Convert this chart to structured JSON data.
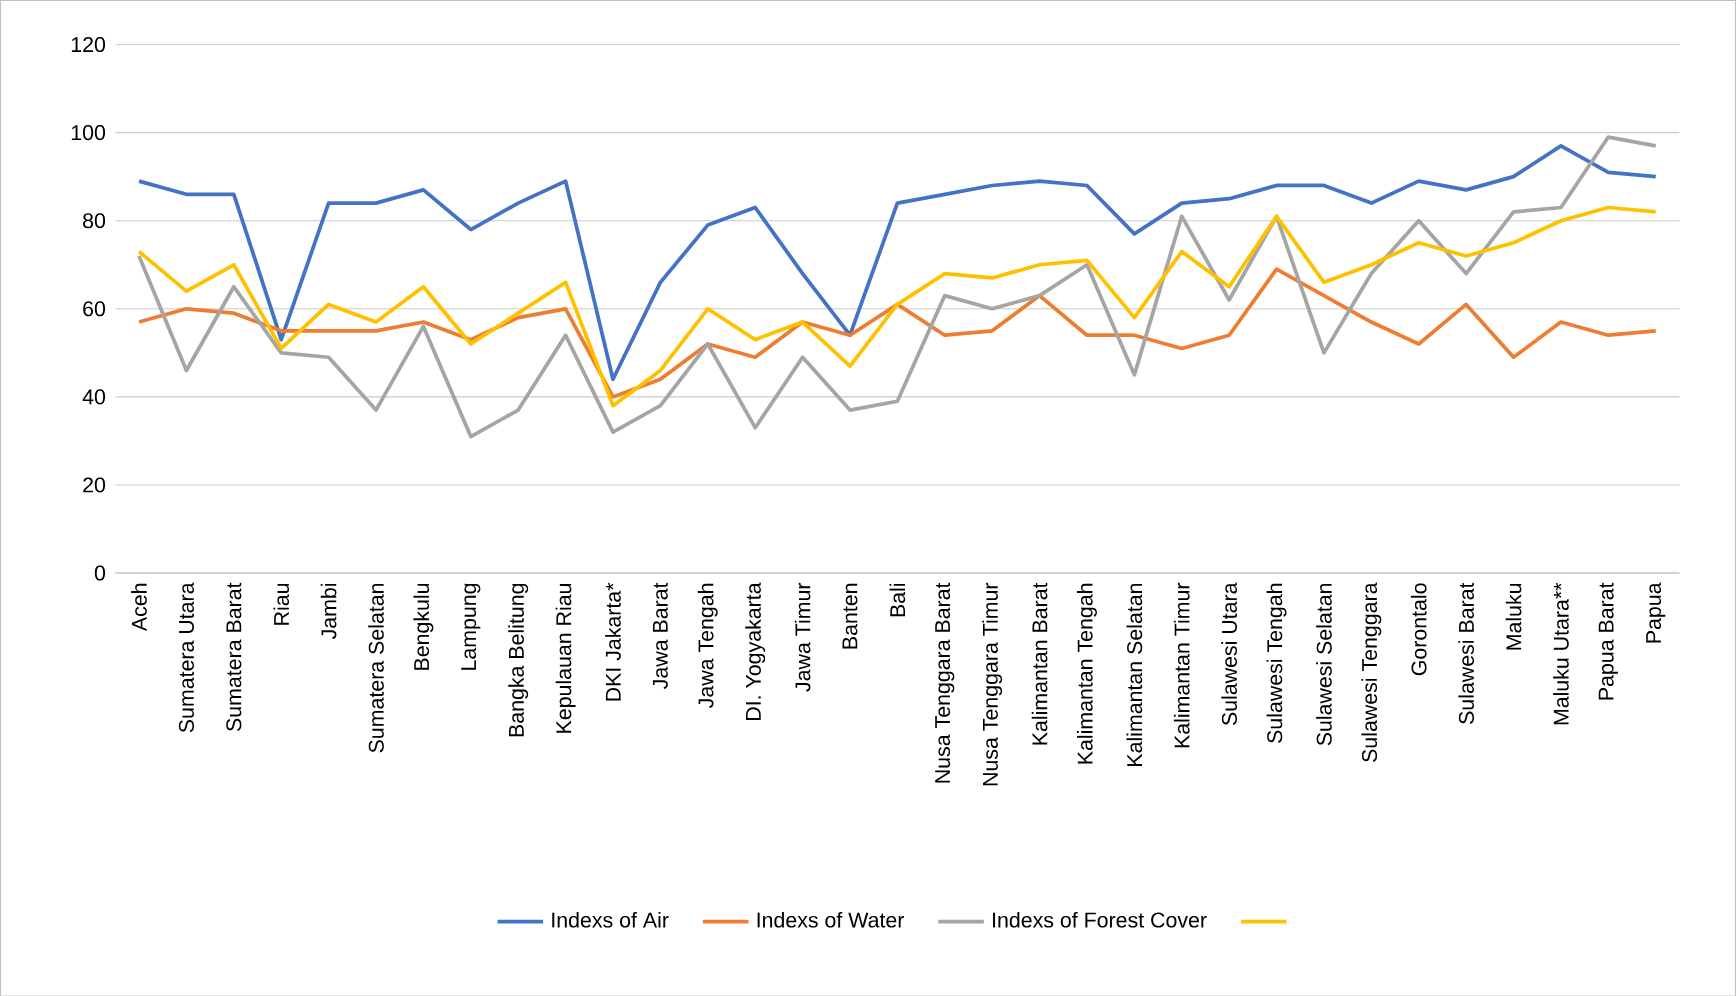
{
  "chart_data": {
    "type": "line",
    "categories": [
      "Aceh",
      "Sumatera Utara",
      "Sumatera Barat",
      "Riau",
      "Jambi",
      "Sumatera Selatan",
      "Bengkulu",
      "Lampung",
      "Bangka Belitung",
      "Kepulauan Riau",
      "DKI Jakarta*",
      "Jawa Barat",
      "Jawa Tengah",
      "DI. Yogyakarta",
      "Jawa Timur",
      "Banten",
      "Bali",
      "Nusa Tenggara Barat",
      "Nusa Tenggara Timur",
      "Kalimantan Barat",
      "Kalimantan Tengah",
      "Kalimantan Selatan",
      "Kalimantan Timur",
      "Sulawesi Utara",
      "Sulawesi Tengah",
      "Sulawesi Selatan",
      "Sulawesi Tenggara",
      "Gorontalo",
      "Sulawesi Barat",
      "Maluku",
      "Maluku Utara**",
      "Papua Barat",
      "Papua"
    ],
    "series": [
      {
        "name": "Indexs of Air",
        "color": "#4472c4",
        "values": [
          89,
          86,
          86,
          53,
          84,
          84,
          87,
          78,
          84,
          89,
          44,
          66,
          79,
          83,
          68,
          54,
          84,
          86,
          88,
          89,
          88,
          77,
          84,
          85,
          88,
          88,
          84,
          89,
          87,
          90,
          97,
          91,
          90
        ]
      },
      {
        "name": "Indexs of Water",
        "color": "#ed7d31",
        "values": [
          57,
          60,
          59,
          55,
          55,
          55,
          57,
          53,
          58,
          60,
          40,
          44,
          52,
          49,
          57,
          54,
          61,
          54,
          55,
          63,
          54,
          54,
          51,
          54,
          69,
          63,
          57,
          52,
          61,
          49,
          57,
          54,
          55
        ]
      },
      {
        "name": "Indexs of Forest Cover",
        "color": "#a5a5a5",
        "values": [
          72,
          46,
          65,
          50,
          49,
          37,
          56,
          31,
          37,
          54,
          32,
          38,
          52,
          33,
          49,
          37,
          39,
          63,
          60,
          63,
          70,
          45,
          81,
          62,
          81,
          50,
          68,
          80,
          68,
          82,
          83,
          99,
          97
        ]
      },
      {
        "color": "#ffc000",
        "values": [
          73,
          64,
          70,
          51,
          61,
          57,
          65,
          52,
          59,
          66,
          38,
          46,
          60,
          53,
          57,
          47,
          61,
          68,
          67,
          70,
          71,
          58,
          73,
          65,
          81,
          66,
          70,
          75,
          72,
          75,
          80,
          83,
          82
        ]
      }
    ],
    "ylim": [
      0,
      120
    ],
    "yticks": [
      0,
      20,
      40,
      60,
      80,
      100,
      120
    ],
    "grid": "y",
    "legend": "bottom",
    "marker": "none",
    "line_style": "solid"
  }
}
